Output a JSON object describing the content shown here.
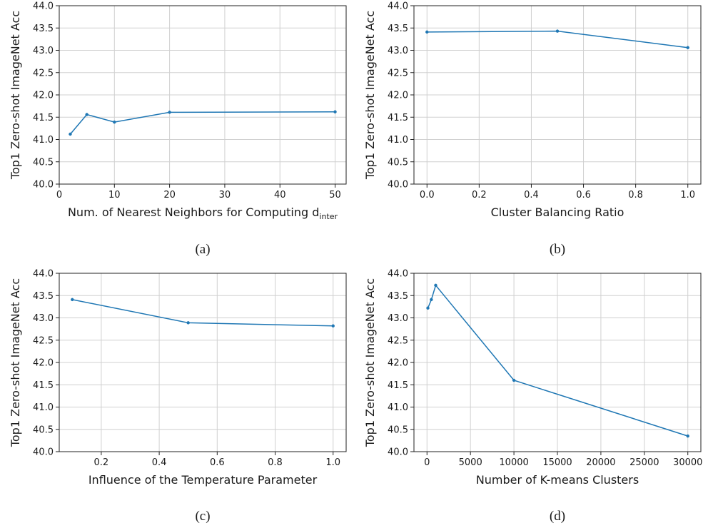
{
  "colors": {
    "line": "#1f77b4",
    "grid": "#d0d0d0",
    "axis": "#222222"
  },
  "chart_data": [
    {
      "type": "line",
      "caption": "(a)",
      "xlabel": "Num. of Nearest Neighbors for Computing d",
      "xlabel_subscript": "inter",
      "ylabel": "Top1 Zero-shot ImageNet Acc",
      "xlim": [
        0,
        52
      ],
      "ylim": [
        40.0,
        44.0
      ],
      "xticks": [
        0,
        10,
        20,
        30,
        40,
        50
      ],
      "xtick_labels": [
        "0",
        "10",
        "20",
        "30",
        "40",
        "50"
      ],
      "yticks": [
        40.0,
        40.5,
        41.0,
        41.5,
        42.0,
        42.5,
        43.0,
        43.5,
        44.0
      ],
      "ytick_labels": [
        "40.0",
        "40.5",
        "41.0",
        "41.5",
        "42.0",
        "42.5",
        "43.0",
        "43.5",
        "44.0"
      ],
      "grid": true,
      "series": [
        {
          "x": [
            2,
            5,
            10,
            20,
            50
          ],
          "y": [
            41.12,
            41.56,
            41.39,
            41.61,
            41.62
          ]
        }
      ]
    },
    {
      "type": "line",
      "caption": "(b)",
      "xlabel": "Cluster Balancing Ratio",
      "ylabel": "Top1 Zero-shot ImageNet Acc",
      "xlim": [
        -0.05,
        1.05
      ],
      "ylim": [
        40.0,
        44.0
      ],
      "xticks": [
        0.0,
        0.2,
        0.4,
        0.6,
        0.8,
        1.0
      ],
      "xtick_labels": [
        "0.0",
        "0.2",
        "0.4",
        "0.6",
        "0.8",
        "1.0"
      ],
      "yticks": [
        40.0,
        40.5,
        41.0,
        41.5,
        42.0,
        42.5,
        43.0,
        43.5,
        44.0
      ],
      "ytick_labels": [
        "40.0",
        "40.5",
        "41.0",
        "41.5",
        "42.0",
        "42.5",
        "43.0",
        "43.5",
        "44.0"
      ],
      "grid": true,
      "series": [
        {
          "x": [
            0.0,
            0.5,
            1.0
          ],
          "y": [
            43.41,
            43.43,
            43.06
          ]
        }
      ]
    },
    {
      "type": "line",
      "caption": "(c)",
      "xlabel": "Influence of the Temperature Parameter",
      "ylabel": "Top1 Zero-shot ImageNet Acc",
      "xlim": [
        0.055,
        1.045
      ],
      "ylim": [
        40.0,
        44.0
      ],
      "xticks": [
        0.2,
        0.4,
        0.6,
        0.8,
        1.0
      ],
      "xtick_labels": [
        "0.2",
        "0.4",
        "0.6",
        "0.8",
        "1.0"
      ],
      "yticks": [
        40.0,
        40.5,
        41.0,
        41.5,
        42.0,
        42.5,
        43.0,
        43.5,
        44.0
      ],
      "ytick_labels": [
        "40.0",
        "40.5",
        "41.0",
        "41.5",
        "42.0",
        "42.5",
        "43.0",
        "43.5",
        "44.0"
      ],
      "grid": true,
      "series": [
        {
          "x": [
            0.1,
            0.5,
            1.0
          ],
          "y": [
            43.41,
            42.89,
            42.82
          ]
        }
      ]
    },
    {
      "type": "line",
      "caption": "(d)",
      "xlabel": "Number of K-means Clusters",
      "ylabel": "Top1 Zero-shot ImageNet Acc",
      "xlim": [
        -1500,
        31500
      ],
      "ylim": [
        40.0,
        44.0
      ],
      "xticks": [
        0,
        5000,
        10000,
        15000,
        20000,
        25000,
        30000
      ],
      "xtick_labels": [
        "0",
        "5000",
        "10000",
        "15000",
        "20000",
        "25000",
        "30000"
      ],
      "yticks": [
        40.0,
        40.5,
        41.0,
        41.5,
        42.0,
        42.5,
        43.0,
        43.5,
        44.0
      ],
      "ytick_labels": [
        "40.0",
        "40.5",
        "41.0",
        "41.5",
        "42.0",
        "42.5",
        "43.0",
        "43.5",
        "44.0"
      ],
      "grid": true,
      "series": [
        {
          "x": [
            100,
            500,
            1000,
            10000,
            30000
          ],
          "y": [
            43.22,
            43.41,
            43.73,
            41.6,
            40.35
          ]
        }
      ]
    }
  ]
}
